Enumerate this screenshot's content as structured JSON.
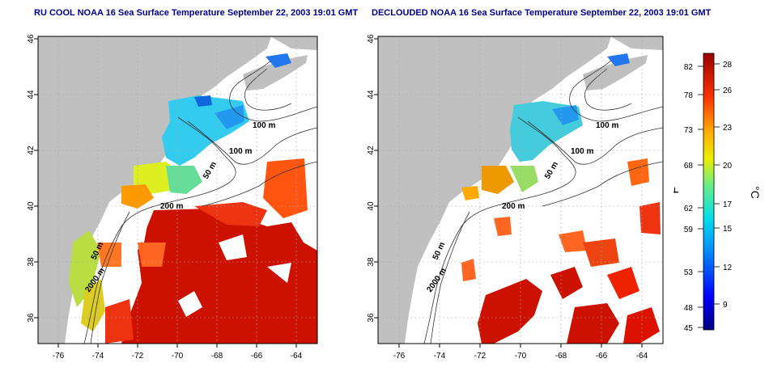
{
  "left_title": "RU COOL NOAA 16 Sea Surface Temperature September 22, 2003 19:01 GMT",
  "right_title": "DECLOUDED NOAA 16 Sea Surface Temperature September 22, 2003 19:01 GMT",
  "lat_ticks": [
    "36",
    "38",
    "40",
    "42",
    "44",
    "46"
  ],
  "lon_ticks": [
    "-76",
    "-74",
    "-72",
    "-70",
    "-68",
    "-66",
    "-64"
  ],
  "contour_labels": [
    "100 m",
    "100 m",
    "50 m",
    "200 m",
    "50 m",
    "2000 m"
  ],
  "colorbar": {
    "f_label": "°F",
    "c_label": "°C",
    "f_ticks": [
      "82",
      "78",
      "73",
      "68",
      "62",
      "59",
      "53",
      "48",
      "45"
    ],
    "c_ticks": [
      "28",
      "26",
      "23",
      "20",
      "17",
      "15",
      "12",
      "9"
    ]
  },
  "colors": {
    "land": "#c0c0c0",
    "title": "#00008b",
    "warm": "#cc1100",
    "cool": "#33ccee"
  }
}
